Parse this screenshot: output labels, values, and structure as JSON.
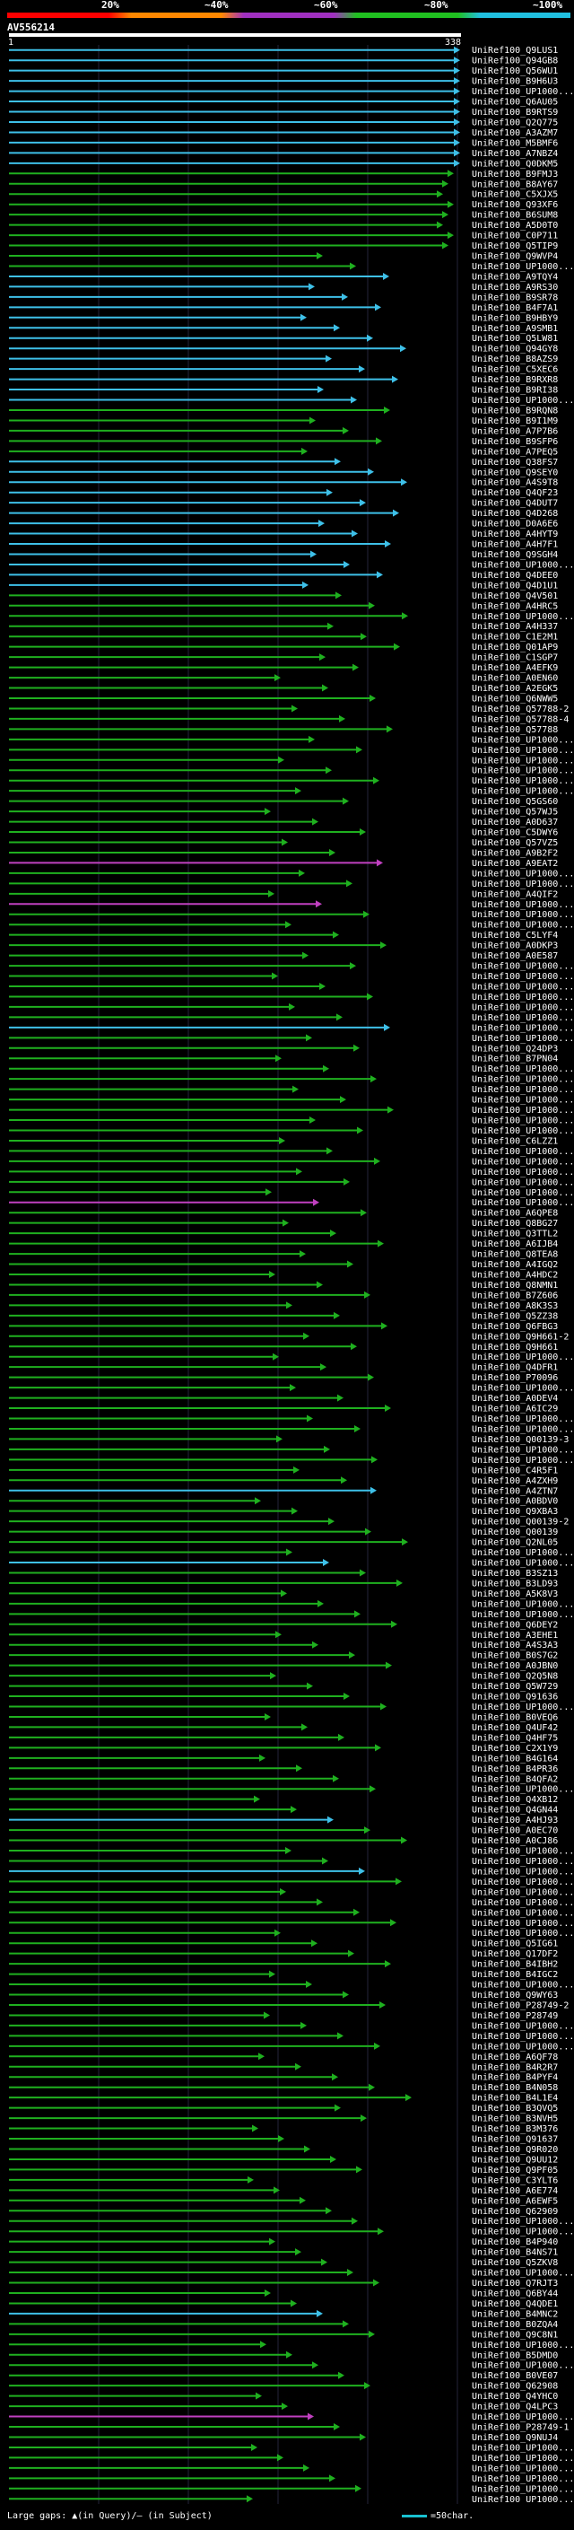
{
  "header": {
    "percent_labels": [
      "20%",
      "~40%",
      "~60%",
      "~80%",
      "~100%"
    ],
    "colors": [
      "#ff0000",
      "#ff8800",
      "#a030c0",
      "#20c020",
      "#20c0e0"
    ]
  },
  "query": {
    "name": "AV556214",
    "start": "1",
    "end": "338"
  },
  "footer": {
    "legend": "Large gaps: ▲(in Query)/– (in Subject)",
    "scale": "=50char."
  },
  "hits": [
    "UniRef100_Q9LUS1",
    "UniRef100_Q94GB8",
    "UniRef100_Q56WU1",
    "UniRef100_B9H6U3",
    "UniRef100_UP1000...",
    "UniRef100_Q6AU05",
    "UniRef100_B9RTS9",
    "UniRef100_Q2Q775",
    "UniRef100_A3AZM7",
    "UniRef100_M5BMF6",
    "UniRef100_A7NBZ4",
    "UniRef100_Q0DKM5",
    "UniRef100_B9FMJ3",
    "UniRef100_B8AY67",
    "UniRef100_C5XJX5",
    "UniRef100_Q93XF6",
    "UniRef100_B6SUM8",
    "UniRef100_A5D0T0",
    "UniRef100_C0P711",
    "UniRef100_Q5TIP9",
    "UniRef100_Q9WVP4",
    "UniRef100_UP1000...",
    "UniRef100_A9TQY4",
    "UniRef100_A9RS30",
    "UniRef100_B9SR78",
    "UniRef100_B4F7A1",
    "UniRef100_B9HBY9",
    "UniRef100_A9SMB1",
    "UniRef100_Q5LW81",
    "UniRef100_Q94GY8",
    "UniRef100_B8AZS9",
    "UniRef100_C5XEC6",
    "UniRef100_B9RXR8",
    "UniRef100_B9RI38",
    "UniRef100_UP1000...",
    "UniRef100_B9RQN8",
    "UniRef100_B9I1M9",
    "UniRef100_A7P7B6",
    "UniRef100_B9SFP6",
    "UniRef100_A7PEQ5",
    "UniRef100_Q38FS7",
    "UniRef100_Q9SEY0",
    "UniRef100_A4S9T8",
    "UniRef100_Q4QF23",
    "UniRef100_Q4DUT7",
    "UniRef100_Q4D268",
    "UniRef100_D0A6E6",
    "UniRef100_A4HYT9",
    "UniRef100_A4H7F1",
    "UniRef100_Q9SGH4",
    "UniRef100_UP1000...",
    "UniRef100_Q4DEE0",
    "UniRef100_Q4D1U1",
    "UniRef100_Q4V501",
    "UniRef100_A4HRC5",
    "UniRef100_UP1000...",
    "UniRef100_A4H337",
    "UniRef100_C1E2M1",
    "UniRef100_Q01AP9",
    "UniRef100_C1SGP7",
    "UniRef100_A4EFK9",
    "UniRef100_A0EN60",
    "UniRef100_A2EGK5",
    "UniRef100_Q6NWW5",
    "UniRef100_Q57788-2",
    "UniRef100_Q57788-4",
    "UniRef100_Q57788",
    "UniRef100_UP1000...",
    "UniRef100_UP1000...",
    "UniRef100_UP1000...",
    "UniRef100_UP1000...",
    "UniRef100_UP1000...",
    "UniRef100_UP1000...",
    "UniRef100_Q5GS60",
    "UniRef100_Q57WJ5",
    "UniRef100_A0D637",
    "UniRef100_C5DWY6",
    "UniRef100_Q57VZ5",
    "UniRef100_A9B2F2",
    "UniRef100_A9EAT2",
    "UniRef100_UP1000...",
    "UniRef100_UP1000...",
    "UniRef100_A4QIF2",
    "UniRef100_UP1000...",
    "UniRef100_UP1000...",
    "UniRef100_UP1000...",
    "UniRef100_C5LYF4",
    "UniRef100_A0DKP3",
    "UniRef100_A0E587",
    "UniRef100_UP1000...",
    "UniRef100_UP1000...",
    "UniRef100_UP1000...",
    "UniRef100_UP1000...",
    "UniRef100_UP1000...",
    "UniRef100_UP1000...",
    "UniRef100_UP1000...",
    "UniRef100_UP1000...",
    "UniRef100_Q24DP3",
    "UniRef100_B7PN04",
    "UniRef100_UP1000...",
    "UniRef100_UP1000...",
    "UniRef100_UP1000...",
    "UniRef100_UP1000...",
    "UniRef100_UP1000...",
    "UniRef100_UP1000...",
    "UniRef100_UP1000...",
    "UniRef100_C6LZZ1",
    "UniRef100_UP1000...",
    "UniRef100_UP1000...",
    "UniRef100_UP1000...",
    "UniRef100_UP1000...",
    "UniRef100_UP1000...",
    "UniRef100_UP1000...",
    "UniRef100_A6QPE8",
    "UniRef100_Q8BG27",
    "UniRef100_Q3TTL2",
    "UniRef100_A6IJB4",
    "UniRef100_Q8TEA8",
    "UniRef100_A4IGQ2",
    "UniRef100_A4HDC2",
    "UniRef100_Q8NMN1",
    "UniRef100_B7Z606",
    "UniRef100_A8K3S3",
    "UniRef100_Q5ZZ38",
    "UniRef100_Q6FBG3",
    "UniRef100_Q9H661-2",
    "UniRef100_Q9H661",
    "UniRef100_UP1000...",
    "UniRef100_Q4DFR1",
    "UniRef100_P70096",
    "UniRef100_UP1000...",
    "UniRef100_A0DEV4",
    "UniRef100_A6IC29",
    "UniRef100_UP1000...",
    "UniRef100_UP1000...",
    "UniRef100_Q00139-3",
    "UniRef100_UP1000...",
    "UniRef100_UP1000...",
    "UniRef100_C4R5F1",
    "UniRef100_A4ZXH9",
    "UniRef100_A4ZTN7",
    "UniRef100_A0BDV0",
    "UniRef100_Q9XBA3",
    "UniRef100_Q00139-2",
    "UniRef100_Q00139",
    "UniRef100_Q2NL05",
    "UniRef100_UP1000...",
    "UniRef100_UP1000...",
    "UniRef100_B3SZ13",
    "UniRef100_B3LD93",
    "UniRef100_A5K8V3",
    "UniRef100_UP1000...",
    "UniRef100_UP1000...",
    "UniRef100_Q6DEY2",
    "UniRef100_A3EHE1",
    "UniRef100_A4S3A3",
    "UniRef100_B0S7G2",
    "UniRef100_A0JBN0",
    "UniRef100_Q2Q5N8",
    "UniRef100_Q5W729",
    "UniRef100_Q91636",
    "UniRef100_UP1000...",
    "UniRef100_B0VEQ6",
    "UniRef100_Q4UF42",
    "UniRef100_Q4HF75",
    "UniRef100_C2X1Y9",
    "UniRef100_B4G164",
    "UniRef100_B4PR36",
    "UniRef100_B4QFA2",
    "UniRef100_UP1000...",
    "UniRef100_Q4XB12",
    "UniRef100_Q4GN44",
    "UniRef100_A4HJ93",
    "UniRef100_A0EC70",
    "UniRef100_A0CJ86",
    "UniRef100_UP1000...",
    "UniRef100_UP1000...",
    "UniRef100_UP1000...",
    "UniRef100_UP1000...",
    "UniRef100_UP1000...",
    "UniRef100_UP1000...",
    "UniRef100_UP1000...",
    "UniRef100_UP1000...",
    "UniRef100_UP1000...",
    "UniRef100_Q5IG61",
    "UniRef100_Q17DF2",
    "UniRef100_B4IBH2",
    "UniRef100_B4IGC2",
    "UniRef100_UP1000...",
    "UniRef100_Q9WY63",
    "UniRef100_P28749-2",
    "UniRef100_P28749",
    "UniRef100_UP1000...",
    "UniRef100_UP1000...",
    "UniRef100_UP1000...",
    "UniRef100_A6QF78",
    "UniRef100_B4R2R7",
    "UniRef100_B4PYF4",
    "UniRef100_B4N058",
    "UniRef100_B4L1E4",
    "UniRef100_B3QVQ5",
    "UniRef100_B3NVH5",
    "UniRef100_B3M376",
    "UniRef100_Q91637",
    "UniRef100_Q9R020",
    "UniRef100_Q9UU12",
    "UniRef100_Q9PF05",
    "UniRef100_C3YLT6",
    "UniRef100_A6E774",
    "UniRef100_A6EWF5",
    "UniRef100_Q62909",
    "UniRef100_UP1000...",
    "UniRef100_UP1000...",
    "UniRef100_B4P940",
    "UniRef100_B4NS71",
    "UniRef100_Q5ZKV8",
    "UniRef100_UP1000...",
    "UniRef100_Q7RJT3",
    "UniRef100_Q6BY44",
    "UniRef100_Q4QDE1",
    "UniRef100_B4MNC2",
    "UniRef100_B0ZQA4",
    "UniRef100_Q9C8N1",
    "UniRef100_UP1000...",
    "UniRef100_B5DMD0",
    "UniRef100_UP1000...",
    "UniRef100_B0VE07",
    "UniRef100_Q62908",
    "UniRef100_Q4YHC0",
    "UniRef100_Q4LPC3",
    "UniRef100_UP1000...",
    "UniRef100_P28749-1",
    "UniRef100_Q9NUJ4",
    "UniRef100_UP1000...",
    "UniRef100_UP1000...",
    "UniRef100_UP1000...",
    "UniRef100_UP1000...",
    "UniRef100_UP1000...",
    "UniRef100_UP1000..."
  ]
}
